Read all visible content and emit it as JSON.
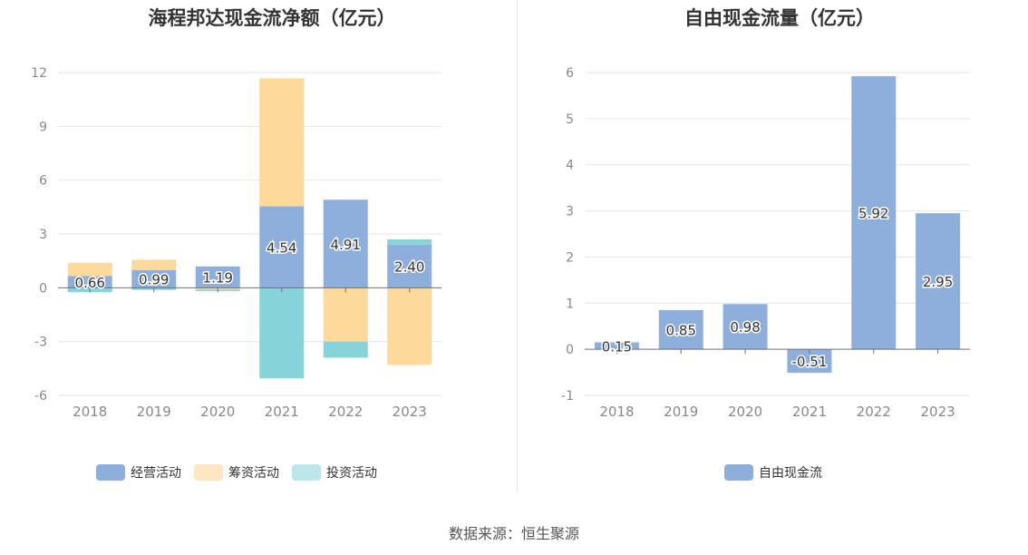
{
  "source_text": "数据来源：恒生聚源",
  "colors": {
    "operating": "#8eaedc",
    "financing": "#fdd99c",
    "investing": "#86d4d9",
    "free_cf": "#8eaedc"
  },
  "chart_data": [
    {
      "type": "bar",
      "stacked": true,
      "title": "海程邦达现金流净额（亿元）",
      "categories": [
        "2018",
        "2019",
        "2020",
        "2021",
        "2022",
        "2023"
      ],
      "ylim": [
        -6,
        12
      ],
      "yticks": [
        12,
        9,
        6,
        3,
        0,
        -3,
        -6
      ],
      "legend_position": "bottom",
      "series": [
        {
          "name": "经营活动",
          "values": [
            0.66,
            0.99,
            1.19,
            4.54,
            4.91,
            2.4
          ],
          "labels": [
            "0.66",
            "0.99",
            "1.19",
            "4.54",
            "4.91",
            "2.40"
          ]
        },
        {
          "name": "筹资活动",
          "values": [
            0.73,
            0.57,
            -0.1,
            7.14,
            -3.0,
            -4.3
          ]
        },
        {
          "name": "投资活动",
          "values": [
            -0.25,
            -0.12,
            -0.08,
            -5.05,
            -0.9,
            0.3
          ]
        }
      ]
    },
    {
      "type": "bar",
      "title": "自由现金流量（亿元）",
      "categories": [
        "2018",
        "2019",
        "2020",
        "2021",
        "2022",
        "2023"
      ],
      "ylim": [
        -1,
        6
      ],
      "yticks": [
        6,
        5,
        4,
        3,
        2,
        1,
        0,
        -1
      ],
      "legend_position": "bottom",
      "series": [
        {
          "name": "自由现金流",
          "values": [
            0.15,
            0.85,
            0.98,
            -0.51,
            5.92,
            2.95
          ],
          "labels": [
            "0.15",
            "0.85",
            "0.98",
            "-0.51",
            "5.92",
            "2.95"
          ]
        }
      ]
    }
  ]
}
